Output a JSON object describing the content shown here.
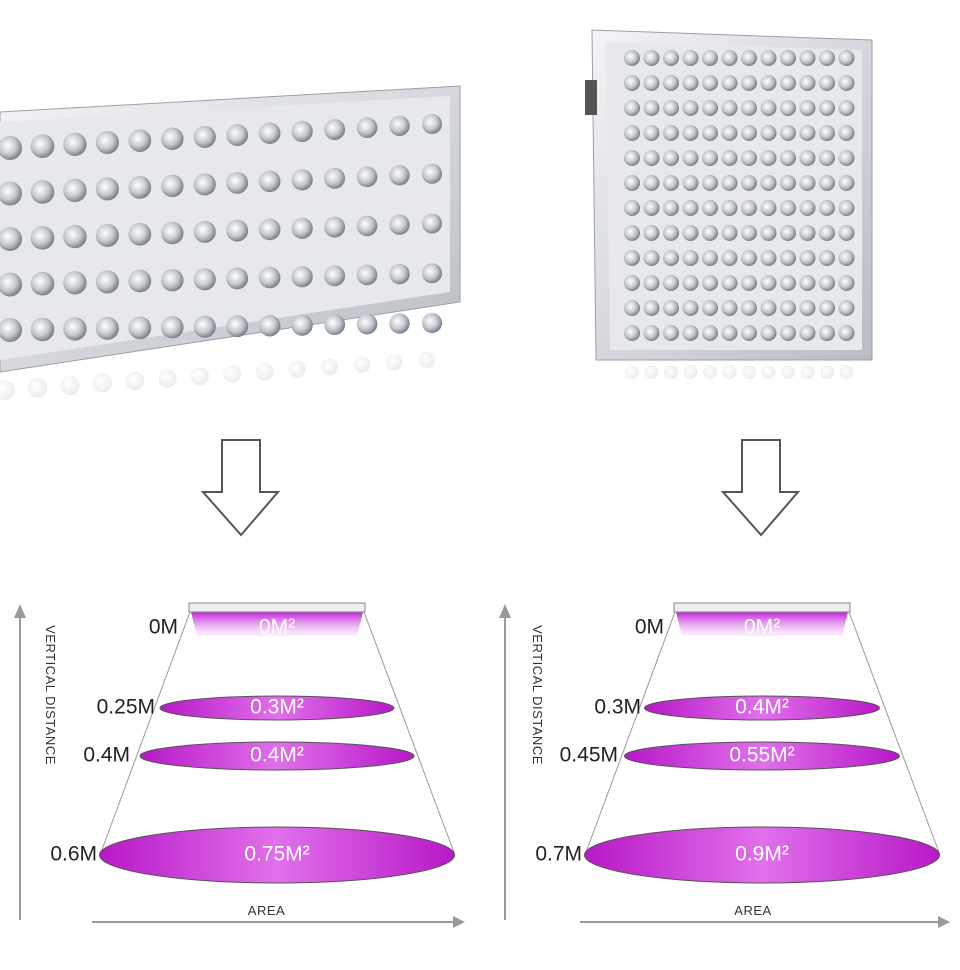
{
  "panels": [
    {
      "vertical_axis": "VERTICAL DISTANCE",
      "horizontal_axis": "AREA",
      "levels": [
        {
          "distance": "0M",
          "area": "0M²"
        },
        {
          "distance": "0.25M",
          "area": "0.3M²"
        },
        {
          "distance": "0.4M",
          "area": "0.4M²"
        },
        {
          "distance": "0.6M",
          "area": "0.75M²"
        }
      ]
    },
    {
      "vertical_axis": "VERTICAL DISTANCE",
      "horizontal_axis": "AREA",
      "levels": [
        {
          "distance": "0M",
          "area": "0M²"
        },
        {
          "distance": "0.3M",
          "area": "0.4M²"
        },
        {
          "distance": "0.45M",
          "area": "0.55M²"
        },
        {
          "distance": "0.7M",
          "area": "0.9M²"
        }
      ]
    }
  ]
}
